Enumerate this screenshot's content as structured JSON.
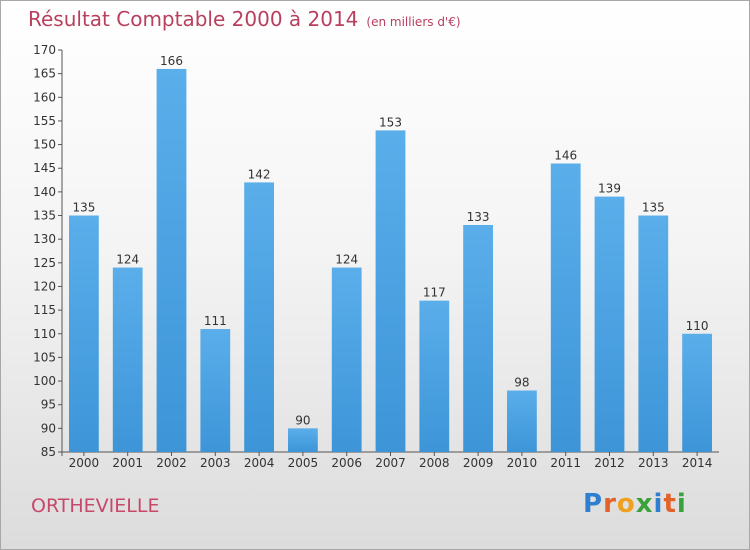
{
  "chart_data": {
    "type": "bar",
    "title": "Résultat Comptable 2000 à 2014",
    "subtitle": "(en milliers d'€)",
    "categories": [
      "2000",
      "2001",
      "2002",
      "2003",
      "2004",
      "2005",
      "2006",
      "2007",
      "2008",
      "2009",
      "2010",
      "2011",
      "2012",
      "2013",
      "2014"
    ],
    "values": [
      135,
      124,
      166,
      111,
      142,
      90,
      124,
      153,
      117,
      133,
      98,
      146,
      139,
      135,
      110
    ],
    "xlabel": "",
    "ylabel": "",
    "ylim": [
      85,
      170
    ],
    "yticks": [
      85,
      90,
      95,
      100,
      105,
      110,
      115,
      120,
      125,
      130,
      135,
      140,
      145,
      150,
      155,
      160,
      165,
      170
    ],
    "grid": false,
    "bar_color": "#3d95d8"
  },
  "place_name": "ORTHEVIELLE",
  "logo": {
    "letters": [
      "P",
      "r",
      "o",
      "x",
      "i",
      "t",
      "i"
    ],
    "colors": [
      "#2f7fd0",
      "#e2622a",
      "#f0a020",
      "#3aa23a",
      "#2f7fd0",
      "#e2622a",
      "#3aa23a"
    ]
  }
}
